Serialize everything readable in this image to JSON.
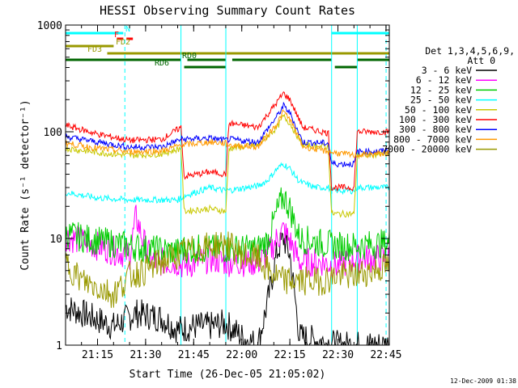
{
  "chart_data": {
    "type": "line",
    "title": "HESSI Observing Summary Count Rates",
    "xlabel": "Start Time (26-Dec-05 21:05:02)",
    "ylabel": "Count Rate (s⁻¹ detector⁻¹)",
    "xlim_minutes_after_21_05": [
      0,
      101
    ],
    "ylim": [
      1,
      1000
    ],
    "yscale": "log",
    "x_ticks": [
      "21:15",
      "21:30",
      "21:45",
      "22:00",
      "22:15",
      "22:30",
      "22:45"
    ],
    "y_ticks": [
      "1",
      "10",
      "100",
      "1000"
    ],
    "legend": {
      "header_line1": "Det 1,3,4,5,6,9,",
      "header_line2": "Att 0",
      "placement": "right"
    },
    "series": [
      {
        "name": "3 - 6 keV",
        "color": "#000000",
        "values": [
          [
            0,
            2.3
          ],
          [
            15,
            1.5
          ],
          [
            22,
            2.0
          ],
          [
            30,
            1.8
          ],
          [
            35,
            1.4
          ],
          [
            40,
            1.5
          ],
          [
            45,
            1.5
          ],
          [
            50,
            1.6
          ],
          [
            55,
            1.2
          ],
          [
            60,
            1.0
          ],
          [
            63,
            2.5
          ],
          [
            66,
            7.5
          ],
          [
            68,
            10
          ],
          [
            70,
            7
          ],
          [
            73,
            1.2
          ],
          [
            85,
            1.0
          ],
          [
            101,
            1.0
          ]
        ]
      },
      {
        "name": "6 - 12 keV",
        "color": "#ff00ff",
        "values": [
          [
            0,
            10.5
          ],
          [
            10,
            8.5
          ],
          [
            20,
            7.0
          ],
          [
            22,
            16.0
          ],
          [
            24,
            10.0
          ],
          [
            27,
            6.0
          ],
          [
            35,
            6.0
          ],
          [
            37,
            5.5
          ],
          [
            45,
            6.5
          ],
          [
            50,
            6.0
          ],
          [
            55,
            6.0
          ],
          [
            60,
            6.0
          ],
          [
            63,
            7.0
          ],
          [
            66,
            10
          ],
          [
            68,
            12
          ],
          [
            70,
            9.5
          ],
          [
            73,
            6.0
          ],
          [
            80,
            6.0
          ],
          [
            85,
            5.5
          ],
          [
            90,
            6.5
          ],
          [
            101,
            6.5
          ]
        ]
      },
      {
        "name": "12 - 25 keV",
        "color": "#00cc00",
        "values": [
          [
            0,
            11
          ],
          [
            10,
            9.5
          ],
          [
            20,
            8.5
          ],
          [
            25,
            8.0
          ],
          [
            35,
            7.5
          ],
          [
            37,
            8.0
          ],
          [
            45,
            8.0
          ],
          [
            50,
            8.0
          ],
          [
            60,
            8.0
          ],
          [
            63,
            9.5
          ],
          [
            66,
            18
          ],
          [
            68,
            25
          ],
          [
            70,
            19
          ],
          [
            73,
            10
          ],
          [
            80,
            9.0
          ],
          [
            85,
            8.5
          ],
          [
            90,
            8.5
          ],
          [
            101,
            9.0
          ]
        ]
      },
      {
        "name": "25 - 50 keV",
        "color": "#00ffff",
        "values": [
          [
            0,
            27
          ],
          [
            10,
            24
          ],
          [
            20,
            23
          ],
          [
            25,
            23
          ],
          [
            35,
            23
          ],
          [
            37,
            25
          ],
          [
            45,
            30
          ],
          [
            50,
            28
          ],
          [
            60,
            31
          ],
          [
            63,
            35
          ],
          [
            66,
            45
          ],
          [
            68,
            50
          ],
          [
            70,
            45
          ],
          [
            73,
            34
          ],
          [
            78,
            30
          ],
          [
            82,
            30
          ],
          [
            83,
            28
          ],
          [
            90,
            28
          ],
          [
            91,
            30
          ],
          [
            101,
            30
          ]
        ]
      },
      {
        "name": "50 - 100 keV",
        "color": "#c8c800",
        "values": [
          [
            0,
            70
          ],
          [
            10,
            64
          ],
          [
            20,
            60
          ],
          [
            30,
            62
          ],
          [
            36,
            70
          ],
          [
            37,
            18
          ],
          [
            45,
            19
          ],
          [
            50,
            18
          ],
          [
            51,
            70
          ],
          [
            60,
            75
          ],
          [
            66,
            110
          ],
          [
            68,
            140
          ],
          [
            70,
            120
          ],
          [
            74,
            75
          ],
          [
            82,
            72
          ],
          [
            83,
            17
          ],
          [
            90,
            17
          ],
          [
            91,
            60
          ],
          [
            101,
            62
          ]
        ]
      },
      {
        "name": "100 - 300 keV",
        "color": "#ff0000",
        "values": [
          [
            0,
            115
          ],
          [
            10,
            95
          ],
          [
            20,
            83
          ],
          [
            30,
            85
          ],
          [
            36,
            110
          ],
          [
            37,
            38
          ],
          [
            45,
            42
          ],
          [
            50,
            40
          ],
          [
            51,
            120
          ],
          [
            60,
            110
          ],
          [
            66,
            190
          ],
          [
            68,
            230
          ],
          [
            70,
            200
          ],
          [
            74,
            110
          ],
          [
            82,
            97
          ],
          [
            83,
            30
          ],
          [
            90,
            30
          ],
          [
            91,
            100
          ],
          [
            101,
            100
          ]
        ]
      },
      {
        "name": "300 - 800 keV",
        "color": "#0000ff",
        "values": [
          [
            0,
            90
          ],
          [
            10,
            80
          ],
          [
            20,
            72
          ],
          [
            30,
            72
          ],
          [
            36,
            85
          ],
          [
            45,
            87
          ],
          [
            50,
            83
          ],
          [
            51,
            85
          ],
          [
            60,
            80
          ],
          [
            66,
            140
          ],
          [
            68,
            175
          ],
          [
            70,
            150
          ],
          [
            74,
            80
          ],
          [
            82,
            78
          ],
          [
            83,
            50
          ],
          [
            90,
            50
          ],
          [
            91,
            65
          ],
          [
            101,
            66
          ]
        ]
      },
      {
        "name": "800 - 7000 keV",
        "color": "#ff9900",
        "values": [
          [
            0,
            78
          ],
          [
            10,
            70
          ],
          [
            20,
            65
          ],
          [
            30,
            66
          ],
          [
            36,
            75
          ],
          [
            45,
            80
          ],
          [
            50,
            78
          ],
          [
            51,
            75
          ],
          [
            60,
            72
          ],
          [
            66,
            120
          ],
          [
            68,
            155
          ],
          [
            70,
            130
          ],
          [
            74,
            73
          ],
          [
            82,
            65
          ],
          [
            90,
            60
          ],
          [
            101,
            63
          ]
        ]
      },
      {
        "name": "7000 - 20000 keV",
        "color": "#999900",
        "values": [
          [
            0,
            6.0
          ],
          [
            5,
            4.0
          ],
          [
            10,
            3.5
          ],
          [
            15,
            3.0
          ],
          [
            20,
            4.5
          ],
          [
            25,
            5.0
          ],
          [
            30,
            6.0
          ],
          [
            35,
            7.0
          ],
          [
            37,
            7.5
          ],
          [
            45,
            8.5
          ],
          [
            50,
            9.0
          ],
          [
            55,
            7.0
          ],
          [
            60,
            6.5
          ],
          [
            63,
            5.0
          ],
          [
            68,
            4.0
          ],
          [
            73,
            4.0
          ],
          [
            80,
            4.0
          ],
          [
            85,
            4.5
          ],
          [
            90,
            4.5
          ],
          [
            101,
            5.5
          ]
        ]
      }
    ],
    "state_bars": [
      {
        "label": "N",
        "color": "#00ffff",
        "segments": [
          [
            0,
            18
          ],
          [
            83,
            101
          ]
        ]
      },
      {
        "label": "F",
        "color": "#ff0000",
        "segments": [
          [
            16,
            18
          ],
          [
            19,
            21
          ]
        ]
      },
      {
        "label": "FD2",
        "color": "#999900",
        "segments": [
          [
            0,
            15
          ]
        ]
      },
      {
        "label": "FD3",
        "color": "#999900",
        "segments": [
          [
            13,
            101
          ]
        ]
      },
      {
        "label": "RD0",
        "color": "#006600",
        "segments": [
          [
            0,
            36
          ],
          [
            38,
            50
          ],
          [
            52,
            83
          ],
          [
            91,
            101
          ]
        ]
      },
      {
        "label": "RD6",
        "color": "#006600",
        "segments": [
          [
            37,
            50
          ],
          [
            84,
            91
          ]
        ]
      }
    ],
    "vertical_lines": [
      {
        "x": 18.5,
        "color": "#00ffff",
        "style": "dashed"
      },
      {
        "x": 36,
        "color": "#00ffff",
        "style": "solid"
      },
      {
        "x": 50,
        "color": "#00ffff",
        "style": "solid"
      },
      {
        "x": 83,
        "color": "#00ffff",
        "style": "solid"
      },
      {
        "x": 91,
        "color": "#00ffff",
        "style": "solid"
      },
      {
        "x": 100,
        "color": "#00ffff",
        "style": "dashed"
      }
    ],
    "footer_stamp": "12-Dec-2009 01:38"
  }
}
